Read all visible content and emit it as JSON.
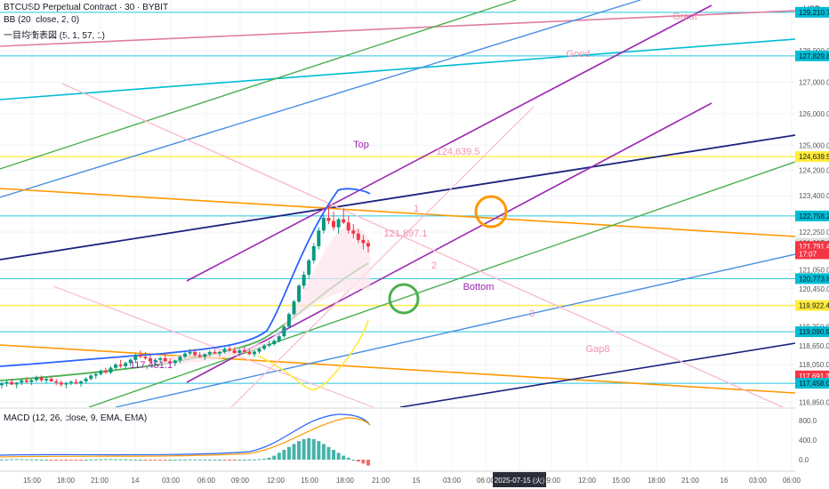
{
  "header": {
    "symbol_line": "BTCUSD Perpetual Contract · 30 · BYBIT",
    "bb_line": "BB (20, close, 2, 0)",
    "ichimoku_line": "一目均衡表図 (5, 1, 57, 1)",
    "macd_line": "MACD (12, 26, close, 9, EMA, EMA)"
  },
  "colors": {
    "up": "#089981",
    "down": "#f23645",
    "price_label": "#f23645",
    "annotation_text": "#f23645"
  },
  "chart_data": {
    "type": "candlestick",
    "currency_label": "USD",
    "y_ticks": [
      116850,
      117451.1,
      118050,
      118650,
      119250,
      119850,
      120450,
      121050,
      121650,
      122250,
      122850,
      123450,
      124050,
      124650,
      125250,
      125850,
      126450,
      127050,
      127650,
      128250,
      128850
    ],
    "y_tick_labels": [
      "116,850.0",
      "118,050.0",
      "118,650.0",
      "119,250.0",
      "120,450.0",
      "121,050.0",
      "122,250.0",
      "123,400.0",
      "124,200.0",
      "125,000.0",
      "126,000.0",
      "127,000.0",
      "128,000.0"
    ],
    "y_ticks_print": [
      {
        "label": "116,850.0",
        "value": 116850
      },
      {
        "label": "118,050.0",
        "value": 118050
      },
      {
        "label": "118,650.0",
        "value": 118650
      },
      {
        "label": "119,250.0",
        "value": 119250
      },
      {
        "label": "120,450.0",
        "value": 120450
      },
      {
        "label": "121,050.0",
        "value": 121050
      },
      {
        "label": "122,250.0",
        "value": 122250
      },
      {
        "label": "123,400.0",
        "value": 123400
      },
      {
        "label": "124,200.0",
        "value": 124200
      },
      {
        "label": "125,000.0",
        "value": 125000
      },
      {
        "label": "126,000.0",
        "value": 126000
      },
      {
        "label": "127,000.0",
        "value": 127000
      },
      {
        "label": "128,000.0",
        "value": 128000
      }
    ],
    "price_labels": [
      {
        "text": "129,210.7",
        "value": 129210.7,
        "color": "#00bcd4"
      },
      {
        "text": "127,829.8",
        "value": 127829.8,
        "color": "#00bcd4"
      },
      {
        "text": "124,639.5",
        "value": 124639.5,
        "color": "#ffeb3b"
      },
      {
        "text": "122,758.2",
        "value": 122758.2,
        "color": "#00bcd4"
      },
      {
        "text": "121,897.1",
        "value": 121897.1,
        "color": "#e0e0e0"
      },
      {
        "text": "121,791.4",
        "value": 121791.4,
        "color": "#f23645"
      },
      {
        "text": "17:07",
        "value": 121560,
        "color": "#f23645"
      },
      {
        "text": "120,773.8",
        "value": 120773.8,
        "color": "#00bcd4"
      },
      {
        "text": "119,922.4",
        "value": 119922.4,
        "color": "#ffeb3b"
      },
      {
        "text": "119,090.9",
        "value": 119090.9,
        "color": "#00bcd4"
      },
      {
        "text": "117,691.3",
        "value": 117691.3,
        "color": "#f23645"
      },
      {
        "text": "117,458.0",
        "value": 117458.0,
        "color": "#00bcd4"
      }
    ],
    "horizontal_levels": [
      {
        "value": 129210.7,
        "color": "#00bcd4"
      },
      {
        "value": 127829.8,
        "color": "#00bcd4"
      },
      {
        "value": 124639.5,
        "color": "#ffeb3b"
      },
      {
        "value": 122758.2,
        "color": "#00bcd4"
      },
      {
        "value": 120773.8,
        "color": "#00bcd4"
      },
      {
        "value": 119922.4,
        "color": "#ffeb3b"
      },
      {
        "value": 119090.9,
        "color": "#00bcd4"
      },
      {
        "value": 117458.0,
        "color": "#00bcd4"
      }
    ],
    "x_labels": [
      "15:00",
      "18:00",
      "21:00",
      "14",
      "03:00",
      "06:00",
      "09:00",
      "12:00",
      "15:00",
      "18:00",
      "21:00",
      "15",
      "03:00",
      "06:00",
      "2025-07-15 (火)",
      "09:00",
      "12:00",
      "15:00",
      "18:00",
      "21:00",
      "16",
      "03:00",
      "06:00"
    ],
    "candles": [
      [
        117400,
        117500,
        117300,
        117450
      ],
      [
        117450,
        117550,
        117350,
        117500
      ],
      [
        117500,
        117600,
        117400,
        117420
      ],
      [
        117420,
        117500,
        117300,
        117480
      ],
      [
        117480,
        117600,
        117400,
        117550
      ],
      [
        117550,
        117650,
        117450,
        117500
      ],
      [
        117500,
        117600,
        117400,
        117560
      ],
      [
        117560,
        117700,
        117500,
        117650
      ],
      [
        117650,
        117700,
        117500,
        117550
      ],
      [
        117550,
        117650,
        117450,
        117600
      ],
      [
        117600,
        117700,
        117500,
        117520
      ],
      [
        117520,
        117600,
        117400,
        117480
      ],
      [
        117480,
        117550,
        117350,
        117420
      ],
      [
        117420,
        117500,
        117300,
        117460
      ],
      [
        117460,
        117550,
        117400,
        117500
      ],
      [
        117500,
        117600,
        117420,
        117450
      ],
      [
        117450,
        117550,
        117350,
        117520
      ],
      [
        117520,
        117650,
        117450,
        117600
      ],
      [
        117600,
        117750,
        117550,
        117700
      ],
      [
        117700,
        117800,
        117600,
        117750
      ],
      [
        117750,
        117900,
        117700,
        117850
      ],
      [
        117850,
        117950,
        117750,
        117800
      ],
      [
        117800,
        118000,
        117750,
        117950
      ],
      [
        117950,
        118100,
        117900,
        118050
      ],
      [
        118050,
        118200,
        117950,
        118000
      ],
      [
        118000,
        118150,
        117900,
        118100
      ],
      [
        118100,
        118250,
        118000,
        118200
      ],
      [
        118200,
        118400,
        118100,
        118350
      ],
      [
        118350,
        118500,
        118250,
        118300
      ],
      [
        118300,
        118450,
        118200,
        118250
      ],
      [
        118250,
        118350,
        118100,
        118150
      ],
      [
        118150,
        118250,
        118000,
        118200
      ],
      [
        118200,
        118300,
        118100,
        118250
      ],
      [
        118250,
        118400,
        118150,
        118150
      ],
      [
        118150,
        118250,
        118050,
        118100
      ],
      [
        118100,
        118200,
        118000,
        118180
      ],
      [
        118180,
        118350,
        118100,
        118300
      ],
      [
        118300,
        118450,
        118250,
        118400
      ],
      [
        118400,
        118550,
        118350,
        118450
      ],
      [
        118450,
        118550,
        118300,
        118350
      ],
      [
        118350,
        118450,
        118250,
        118300
      ],
      [
        118300,
        118400,
        118200,
        118380
      ],
      [
        118380,
        118500,
        118300,
        118450
      ],
      [
        118450,
        118550,
        118400,
        118400
      ],
      [
        118400,
        118500,
        118300,
        118450
      ],
      [
        118450,
        118600,
        118400,
        118550
      ],
      [
        118550,
        118650,
        118450,
        118500
      ],
      [
        118500,
        118600,
        118400,
        118420
      ],
      [
        118420,
        118550,
        118350,
        118500
      ],
      [
        118500,
        118600,
        118400,
        118450
      ],
      [
        118450,
        118550,
        118350,
        118380
      ],
      [
        118380,
        118500,
        118300,
        118460
      ],
      [
        118460,
        118600,
        118400,
        118550
      ],
      [
        118550,
        118700,
        118500,
        118650
      ],
      [
        118650,
        118800,
        118600,
        118700
      ],
      [
        118700,
        118850,
        118650,
        118800
      ],
      [
        118800,
        119000,
        118750,
        118950
      ],
      [
        118950,
        119300,
        118900,
        119250
      ],
      [
        119250,
        119700,
        119200,
        119650
      ],
      [
        119650,
        120100,
        119600,
        120050
      ],
      [
        120050,
        120600,
        120000,
        120550
      ],
      [
        120550,
        121000,
        120450,
        120900
      ],
      [
        120900,
        121400,
        120800,
        121350
      ],
      [
        121350,
        121900,
        121250,
        121800
      ],
      [
        121800,
        122400,
        121700,
        122300
      ],
      [
        122300,
        122800,
        122200,
        122700
      ],
      [
        122700,
        123100,
        122500,
        122600
      ],
      [
        122600,
        122900,
        122300,
        122400
      ],
      [
        122400,
        122700,
        122200,
        122650
      ],
      [
        122650,
        123000,
        122500,
        122550
      ],
      [
        122550,
        122750,
        122200,
        122300
      ],
      [
        122300,
        122500,
        122050,
        122200
      ],
      [
        122200,
        122350,
        121900,
        122000
      ],
      [
        122000,
        122150,
        121700,
        121900
      ],
      [
        121900,
        122000,
        121600,
        121791.4
      ]
    ],
    "annotations": [
      {
        "text": "Great"
      },
      {
        "text": "Good"
      },
      {
        "text": "Top"
      },
      {
        "text": "Bottom"
      },
      {
        "text": "Gap8"
      },
      {
        "text": "124,639.5"
      },
      {
        "text": "121,897.1"
      },
      {
        "text": "117,451.1"
      },
      {
        "text": "1"
      },
      {
        "text": "2"
      },
      {
        "text": "3"
      }
    ],
    "macd_ticks": [
      "800.0",
      "400.0",
      "0.0"
    ],
    "macd_hist": [
      5,
      8,
      10,
      12,
      10,
      8,
      6,
      4,
      2,
      0,
      -2,
      -4,
      -6,
      -5,
      -3,
      -2,
      -1,
      2,
      4,
      6,
      8,
      10,
      12,
      10,
      8,
      6,
      4,
      2,
      0,
      -2,
      -4,
      -3,
      -2,
      -1,
      0,
      1,
      2,
      4,
      6,
      5,
      4,
      3,
      2,
      1,
      0,
      -1,
      -2,
      -1,
      0,
      2,
      4,
      6,
      10,
      20,
      40,
      80,
      140,
      200,
      260,
      320,
      380,
      420,
      440,
      420,
      380,
      320,
      260,
      200,
      140,
      80,
      40,
      0,
      -40,
      -80,
      -120
    ],
    "grid": true
  }
}
